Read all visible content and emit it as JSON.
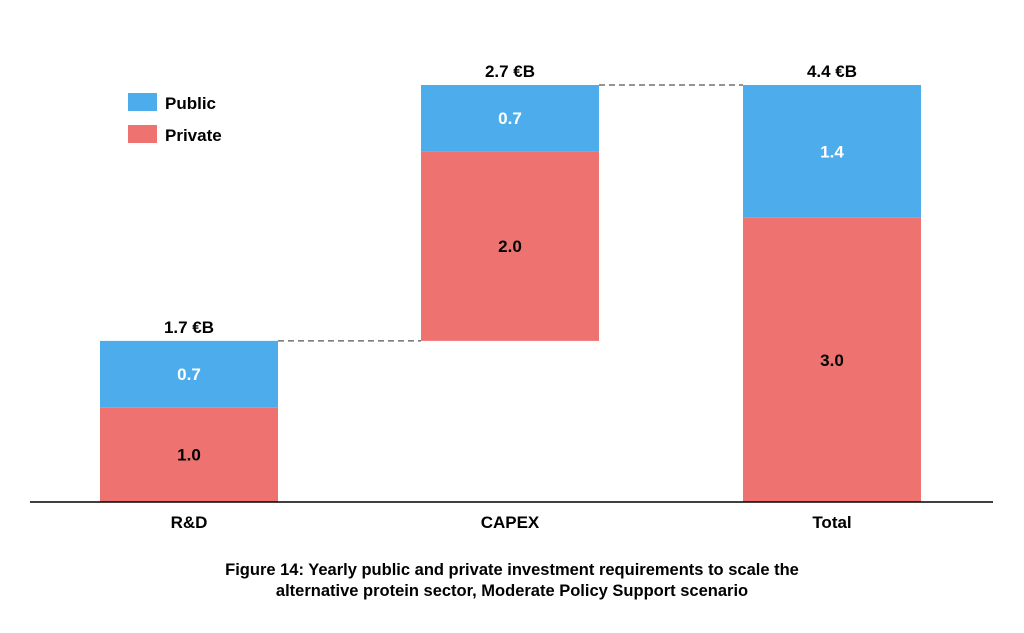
{
  "chart_data": {
    "type": "bar",
    "subtype": "stacked-waterfall",
    "unit_label": "€B",
    "categories": [
      "R&D",
      "CAPEX",
      "Total"
    ],
    "series": [
      {
        "name": "Private",
        "values": [
          1.0,
          2.0,
          3.0
        ],
        "labels": [
          "1.0",
          "2.0",
          "3.0"
        ],
        "color": "#ee7370"
      },
      {
        "name": "Public",
        "values": [
          0.7,
          0.7,
          1.4
        ],
        "labels": [
          "0.7",
          "0.7",
          "1.4"
        ],
        "color": "#4dadec"
      }
    ],
    "bar_bases": [
      0,
      1.7,
      0
    ],
    "totals": [
      "1.7 €B",
      "2.7 €B",
      "4.4 €B"
    ],
    "legend": [
      {
        "name": "Public",
        "color": "#4dadec"
      },
      {
        "name": "Private",
        "color": "#ee7370"
      }
    ],
    "legend_position": "top-left",
    "ylim": [
      0,
      4.4
    ],
    "connectors": true,
    "title": ""
  },
  "caption": {
    "line1": "Figure 14: Yearly public and private investment requirements to scale the",
    "line2": "alternative protein sector, Moderate Policy Support scenario"
  }
}
